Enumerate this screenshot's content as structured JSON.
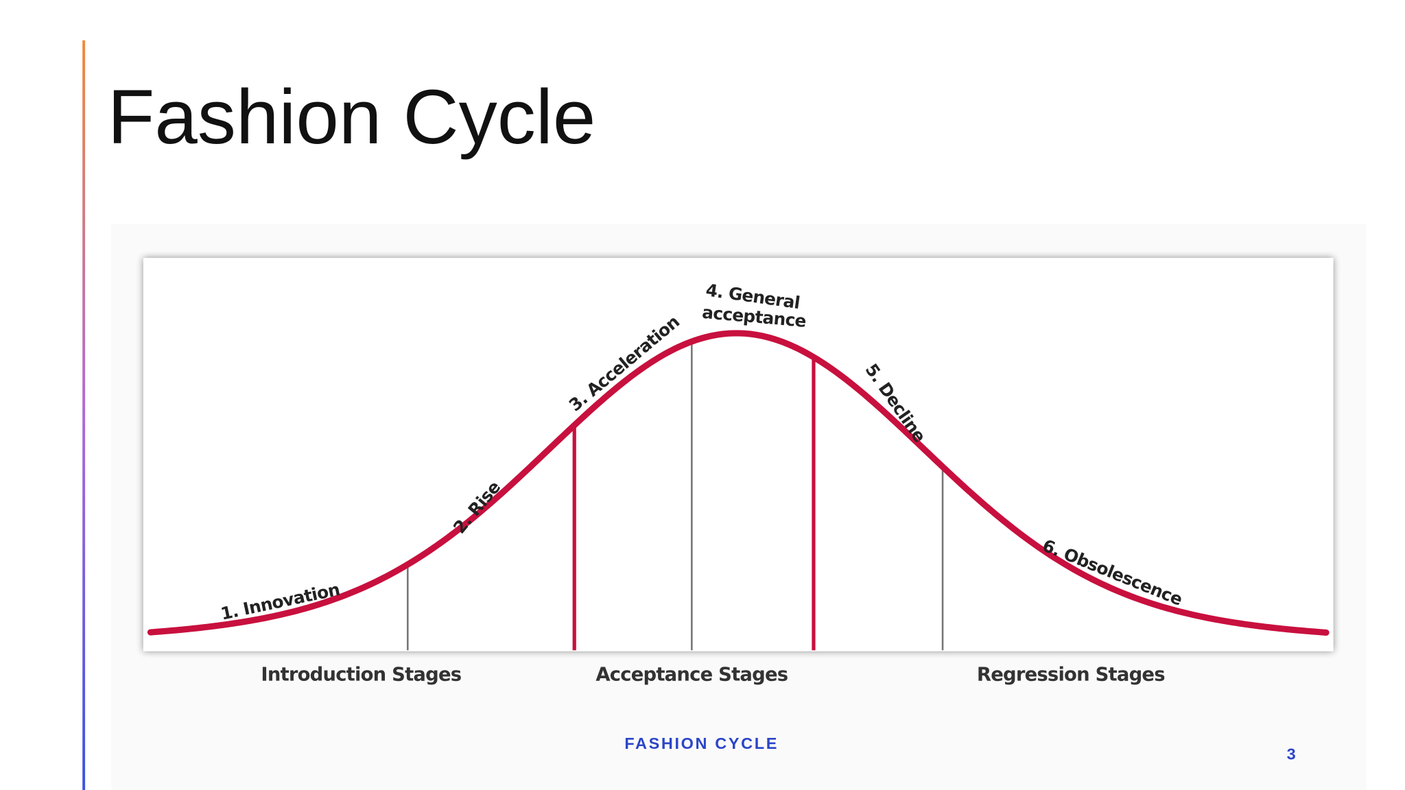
{
  "title": "Fashion Cycle",
  "diagram": {
    "stages": [
      {
        "lines": [
          "1. Innovation"
        ]
      },
      {
        "lines": [
          "2. Rise"
        ]
      },
      {
        "lines": [
          "3. Acceleration"
        ]
      },
      {
        "lines": [
          "4. General",
          "acceptance"
        ]
      },
      {
        "lines": [
          "5. Decline"
        ]
      },
      {
        "lines": [
          "6. Obsolescence"
        ]
      }
    ],
    "phases": [
      "Introduction Stages",
      "Acceptance Stages",
      "Regression Stages"
    ]
  },
  "footer": "FASHION CYCLE",
  "page_number": 3
}
